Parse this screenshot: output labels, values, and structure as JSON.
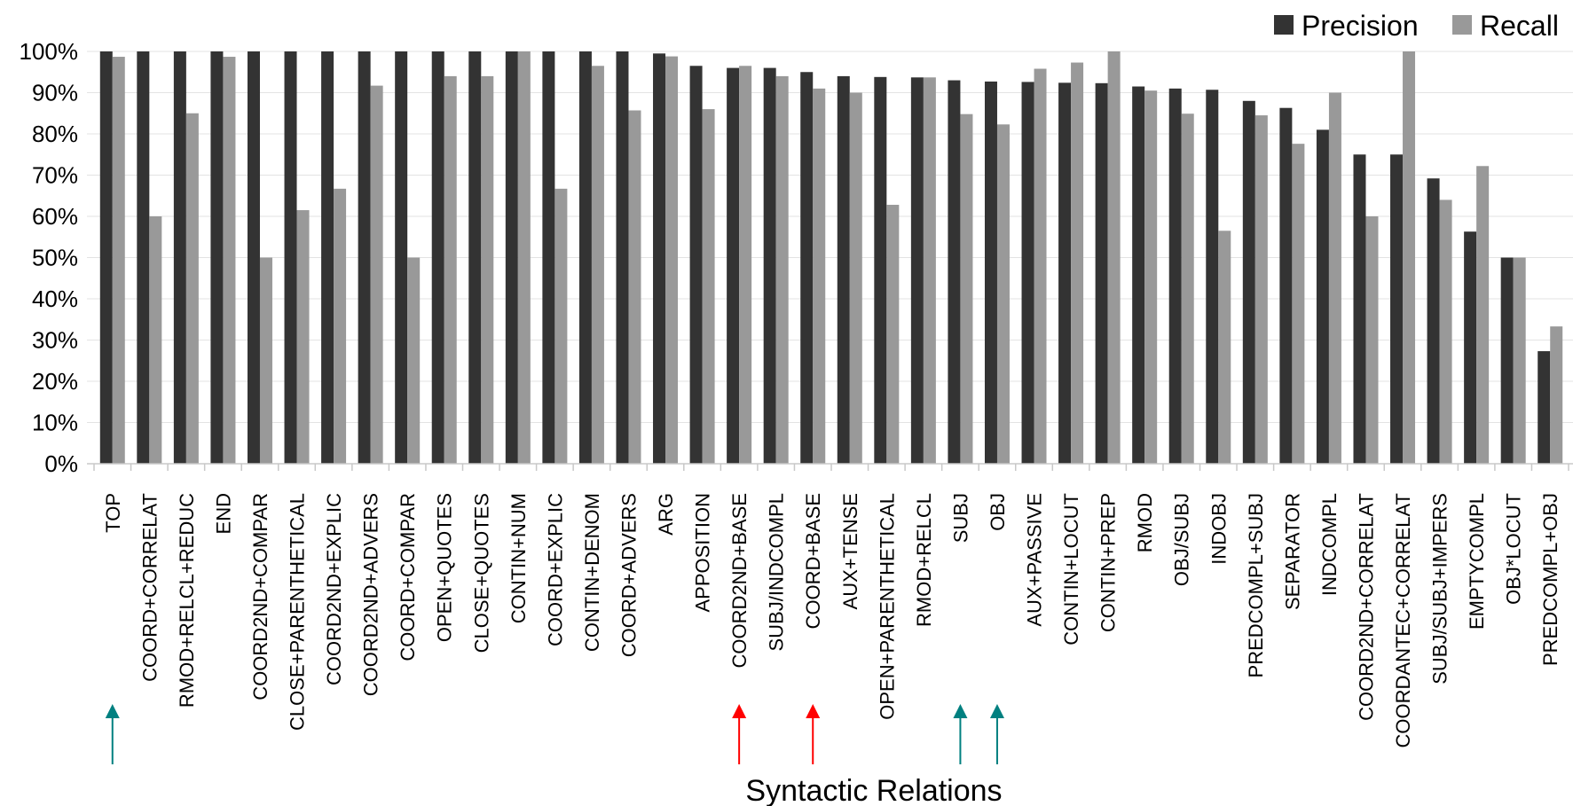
{
  "chart_data": {
    "type": "bar",
    "xlabel": "Syntactic Relations",
    "ylabel": "",
    "ylim": [
      0,
      100
    ],
    "yticks": [
      "0%",
      "10%",
      "20%",
      "30%",
      "40%",
      "50%",
      "60%",
      "70%",
      "80%",
      "90%",
      "100%"
    ],
    "grid": true,
    "legend": "top-right",
    "categories": [
      "TOP",
      "COORD+CORRELAT",
      "RMOD+RELCL+REDUC",
      "END",
      "COORD2ND+COMPAR",
      "CLOSE+PARENTHETICAL",
      "COORD2ND+EXPLIC",
      "COORD2ND+ADVERS",
      "COORD+COMPAR",
      "OPEN+QUOTES",
      "CLOSE+QUOTES",
      "CONTIN+NUM",
      "COORD+EXPLIC",
      "CONTIN+DENOM",
      "COORD+ADVERS",
      "ARG",
      "APPOSITION",
      "COORD2ND+BASE",
      "SUBJ/INDCOMPL",
      "COORD+BASE",
      "AUX+TENSE",
      "OPEN+PARENTHETICAL",
      "RMOD+RELCL",
      "SUBJ",
      "OBJ",
      "AUX+PASSIVE",
      "CONTIN+LOCUT",
      "CONTIN+PREP",
      "RMOD",
      "OBJ/SUBJ",
      "INDOBJ",
      "PREDCOMPL+SUBJ",
      "SEPARATOR",
      "INDCOMPL",
      "COORD2ND+CORRELAT",
      "COORDANTEC+CORRELAT",
      "SUBJ/SUBJ+IMPERS",
      "EMPTYCOMPL",
      "OBJ*LOCUT",
      "PREDCOMPL+OBJ"
    ],
    "series": [
      {
        "name": "Precision",
        "color": "#333333",
        "values": [
          100,
          100,
          100,
          100,
          100,
          100,
          100,
          100,
          100,
          100,
          100,
          100,
          100,
          100,
          100,
          99.5,
          96.5,
          96,
          96,
          95,
          94,
          93.8,
          93.7,
          93,
          92.7,
          92.6,
          92.4,
          92.3,
          91.5,
          91,
          90.7,
          88,
          86.3,
          81,
          75,
          75,
          69.2,
          56.3,
          50,
          27.3
        ]
      },
      {
        "name": "Recall",
        "color": "#999999",
        "values": [
          98.7,
          60,
          85,
          98.7,
          50,
          61.5,
          66.7,
          91.7,
          50,
          94,
          94,
          100,
          66.7,
          96.5,
          85.7,
          98.8,
          86,
          96.5,
          94,
          91,
          90,
          62.8,
          93.7,
          84.8,
          82.3,
          95.8,
          97.3,
          100,
          90.5,
          84.9,
          56.5,
          84.5,
          77.6,
          90,
          60,
          100,
          64,
          72.2,
          50,
          33.3
        ]
      }
    ],
    "annotations": [
      {
        "category": "TOP",
        "type": "arrow",
        "color": "#008080"
      },
      {
        "category": "COORD2ND+BASE",
        "type": "arrow",
        "color": "#ff0000"
      },
      {
        "category": "COORD+BASE",
        "type": "arrow",
        "color": "#ff0000"
      },
      {
        "category": "SUBJ",
        "type": "arrow",
        "color": "#008080"
      },
      {
        "category": "OBJ",
        "type": "arrow",
        "color": "#008080"
      }
    ]
  }
}
